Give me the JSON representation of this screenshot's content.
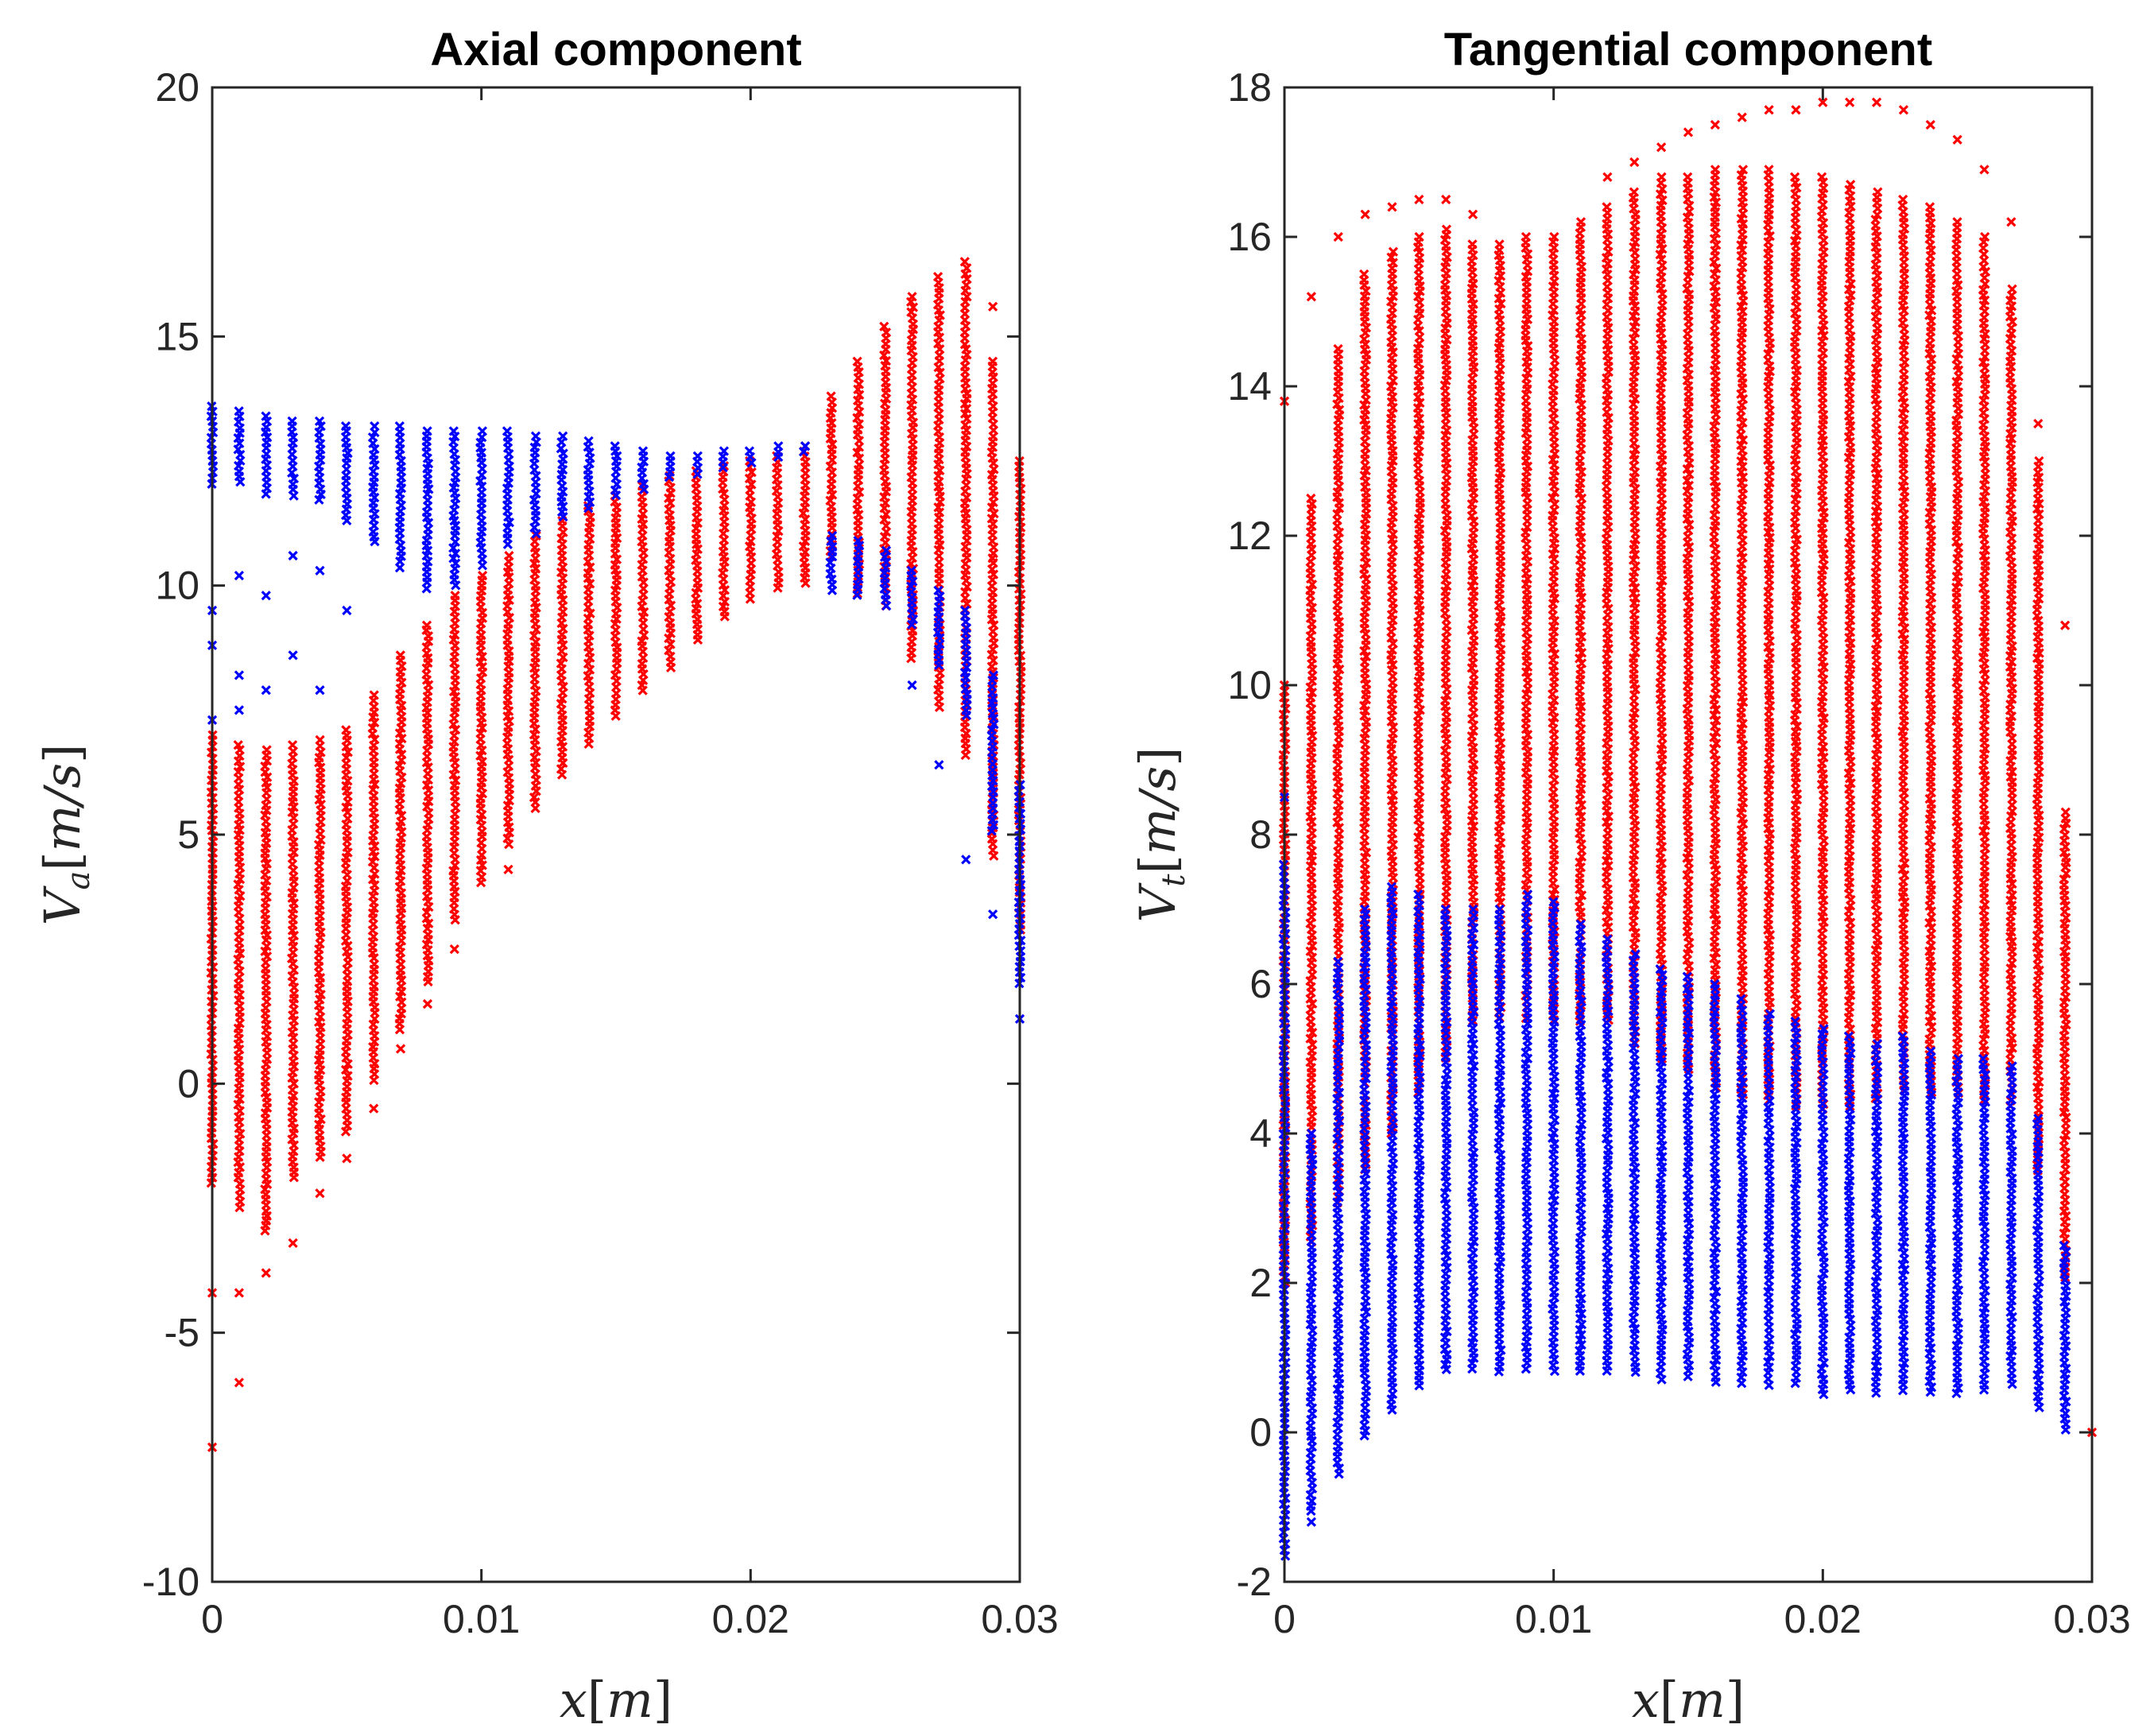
{
  "chart_data": [
    {
      "type": "scatter",
      "title": "Axial component",
      "xlabel": "x[m]",
      "ylabel": "V_a[m/s]",
      "xlim": [
        0,
        0.03
      ],
      "ylim": [
        -10,
        20
      ],
      "xticks": [
        "0",
        "0.01",
        "0.02",
        "0.03"
      ],
      "yticks": [
        "-10",
        "-5",
        "0",
        "5",
        "10",
        "15",
        "20"
      ],
      "marker": "x",
      "series": [
        {
          "name": "red",
          "color": "#ff0000",
          "x": [
            0,
            0.001,
            0.002,
            0.003,
            0.004,
            0.005,
            0.006,
            0.007,
            0.008,
            0.009,
            0.01,
            0.011,
            0.012,
            0.013,
            0.014,
            0.015,
            0.016,
            0.017,
            0.018,
            0.019,
            0.02,
            0.021,
            0.022,
            0.023,
            0.024,
            0.025,
            0.026,
            0.027,
            0.028,
            0.029,
            0.03
          ],
          "ymin": [
            -2,
            -2.5,
            -3,
            -2,
            -1.5,
            -1,
            0,
            1,
            2,
            3.2,
            4,
            4.8,
            5.5,
            6.2,
            6.8,
            7.3,
            7.8,
            8.3,
            8.8,
            9.3,
            9.7,
            9.9,
            10,
            10.5,
            9.8,
            9.5,
            8.5,
            7.5,
            6.5,
            4.5,
            3
          ],
          "ymax": [
            7,
            6.8,
            6.7,
            6.8,
            6.9,
            7.1,
            7.8,
            8.6,
            9.2,
            9.8,
            10.2,
            10.6,
            11,
            11.3,
            11.6,
            11.8,
            12,
            12.2,
            12.3,
            12.4,
            12.5,
            12.6,
            12.8,
            13.8,
            14.5,
            15.2,
            15.8,
            16.2,
            16.5,
            14.5,
            12.5
          ],
          "outliers": [
            [
              0,
              -7.3
            ],
            [
              0,
              -4.2
            ],
            [
              0.001,
              -6
            ],
            [
              0.001,
              -4.2
            ],
            [
              0.002,
              -3.8
            ],
            [
              0.003,
              -3.2
            ],
            [
              0.004,
              -2.2
            ],
            [
              0.005,
              -1.5
            ],
            [
              0.006,
              -0.5
            ],
            [
              0.007,
              0.7
            ],
            [
              0.008,
              1.6
            ],
            [
              0.009,
              2.7
            ],
            [
              0.011,
              4.3
            ],
            [
              0.029,
              15.6
            ]
          ]
        },
        {
          "name": "blue",
          "color": "#0000ff",
          "x": [
            0,
            0.001,
            0.002,
            0.003,
            0.004,
            0.005,
            0.006,
            0.007,
            0.008,
            0.009,
            0.01,
            0.011,
            0.012,
            0.013,
            0.014,
            0.015,
            0.016,
            0.017,
            0.018,
            0.019,
            0.02,
            0.021,
            0.022,
            0.023,
            0.024,
            0.025,
            0.026,
            0.027,
            0.028,
            0.029,
            0.03
          ],
          "ymin": [
            12,
            12,
            11.8,
            11.8,
            11.6,
            11.2,
            10.8,
            10.3,
            9.9,
            10,
            10.4,
            10.8,
            11,
            11.3,
            11.5,
            11.7,
            11.9,
            12.1,
            12.2,
            12.3,
            12.4,
            12.5,
            12.6,
            9.9,
            9.7,
            9.5,
            9.2,
            8.4,
            7.3,
            5,
            2
          ],
          "ymax": [
            13.6,
            13.5,
            13.4,
            13.3,
            13.3,
            13.2,
            13.2,
            13.2,
            13.1,
            13.1,
            13.1,
            13.1,
            13.0,
            13.0,
            12.9,
            12.8,
            12.7,
            12.6,
            12.6,
            12.7,
            12.7,
            12.8,
            12.8,
            11,
            10.9,
            10.7,
            10.3,
            9.9,
            9.5,
            8.2,
            6
          ],
          "outliers": [
            [
              0,
              9.5
            ],
            [
              0,
              8.8
            ],
            [
              0,
              7.3
            ],
            [
              0.001,
              10.2
            ],
            [
              0.001,
              8.2
            ],
            [
              0.001,
              7.5
            ],
            [
              0.002,
              9.8
            ],
            [
              0.002,
              7.9
            ],
            [
              0.003,
              10.6
            ],
            [
              0.003,
              8.6
            ],
            [
              0.004,
              10.3
            ],
            [
              0.004,
              7.9
            ],
            [
              0.005,
              9.5
            ],
            [
              0.026,
              8
            ],
            [
              0.027,
              6.4
            ],
            [
              0.028,
              4.5
            ],
            [
              0.029,
              3.4
            ],
            [
              0.03,
              1.3
            ]
          ]
        }
      ]
    },
    {
      "type": "scatter",
      "title": "Tangential component",
      "xlabel": "x[m]",
      "ylabel": "V_t[m/s]",
      "xlim": [
        0,
        0.03
      ],
      "ylim": [
        -2,
        18
      ],
      "xticks": [
        "0",
        "0.01",
        "0.02",
        "0.03"
      ],
      "yticks": [
        "-2",
        "0",
        "2",
        "4",
        "6",
        "8",
        "10",
        "12",
        "14",
        "16",
        "18"
      ],
      "marker": "x",
      "series": [
        {
          "name": "red",
          "color": "#ff0000",
          "x": [
            0,
            0.001,
            0.002,
            0.003,
            0.004,
            0.005,
            0.006,
            0.007,
            0.008,
            0.009,
            0.01,
            0.011,
            0.012,
            0.013,
            0.014,
            0.015,
            0.016,
            0.017,
            0.018,
            0.019,
            0.02,
            0.021,
            0.022,
            0.023,
            0.024,
            0.025,
            0.026,
            0.027,
            0.028,
            0.029
          ],
          "ymin": [
            2,
            2.5,
            3,
            3.5,
            4,
            4.5,
            5,
            5.5,
            5.5,
            5.5,
            5.5,
            5.5,
            5.5,
            5.2,
            5,
            4.8,
            4.6,
            4.5,
            4.4,
            4.3,
            4.3,
            4.3,
            4.4,
            4.5,
            4.5,
            4.5,
            4.4,
            4.3,
            3.5,
            2
          ],
          "ymax": [
            10,
            12.5,
            14.5,
            15.5,
            15.8,
            16.0,
            16.1,
            15.9,
            15.9,
            16.0,
            16.0,
            16.2,
            16.4,
            16.6,
            16.8,
            16.8,
            16.9,
            16.9,
            16.9,
            16.8,
            16.8,
            16.7,
            16.6,
            16.5,
            16.4,
            16.2,
            16.0,
            15.3,
            13.0,
            8.3
          ],
          "outliers": [
            [
              0,
              13.8
            ],
            [
              0.001,
              15.2
            ],
            [
              0.002,
              16.0
            ],
            [
              0.003,
              16.3
            ],
            [
              0.004,
              16.4
            ],
            [
              0.005,
              16.5
            ],
            [
              0.006,
              16.5
            ],
            [
              0.007,
              16.3
            ],
            [
              0.012,
              16.8
            ],
            [
              0.013,
              17.0
            ],
            [
              0.014,
              17.2
            ],
            [
              0.015,
              17.4
            ],
            [
              0.016,
              17.5
            ],
            [
              0.017,
              17.6
            ],
            [
              0.018,
              17.7
            ],
            [
              0.019,
              17.7
            ],
            [
              0.02,
              17.8
            ],
            [
              0.021,
              17.8
            ],
            [
              0.022,
              17.8
            ],
            [
              0.023,
              17.7
            ],
            [
              0.024,
              17.5
            ],
            [
              0.025,
              17.3
            ],
            [
              0.026,
              16.9
            ],
            [
              0.027,
              16.2
            ],
            [
              0.028,
              13.5
            ],
            [
              0.029,
              10.8
            ],
            [
              0.03,
              0
            ]
          ]
        },
        {
          "name": "blue",
          "color": "#0000ff",
          "x": [
            0,
            0.001,
            0.002,
            0.003,
            0.004,
            0.005,
            0.006,
            0.007,
            0.008,
            0.009,
            0.01,
            0.011,
            0.012,
            0.013,
            0.014,
            0.015,
            0.016,
            0.017,
            0.018,
            0.019,
            0.02,
            0.021,
            0.022,
            0.023,
            0.024,
            0.025,
            0.026,
            0.027,
            0.028,
            0.029
          ],
          "ymin": [
            -1.7,
            -1.1,
            -0.6,
            -0.1,
            0.3,
            0.6,
            0.8,
            0.8,
            0.8,
            0.8,
            0.8,
            0.8,
            0.8,
            0.8,
            0.7,
            0.7,
            0.6,
            0.6,
            0.6,
            0.6,
            0.5,
            0.5,
            0.5,
            0.5,
            0.5,
            0.5,
            0.5,
            0.6,
            0.3,
            0
          ],
          "ymax": [
            7.6,
            4,
            6.3,
            7,
            7.3,
            7.2,
            7.0,
            7.0,
            7.0,
            7.2,
            7.1,
            6.8,
            6.6,
            6.4,
            6.2,
            6.1,
            6.0,
            5.8,
            5.6,
            5.5,
            5.4,
            5.3,
            5.2,
            5.3,
            5.1,
            5.0,
            5.0,
            4.9,
            4.2,
            2.5
          ],
          "outliers": [
            [
              0,
              8.5
            ],
            [
              0.004,
              0.3
            ],
            [
              0.001,
              -1.2
            ]
          ]
        }
      ]
    }
  ]
}
